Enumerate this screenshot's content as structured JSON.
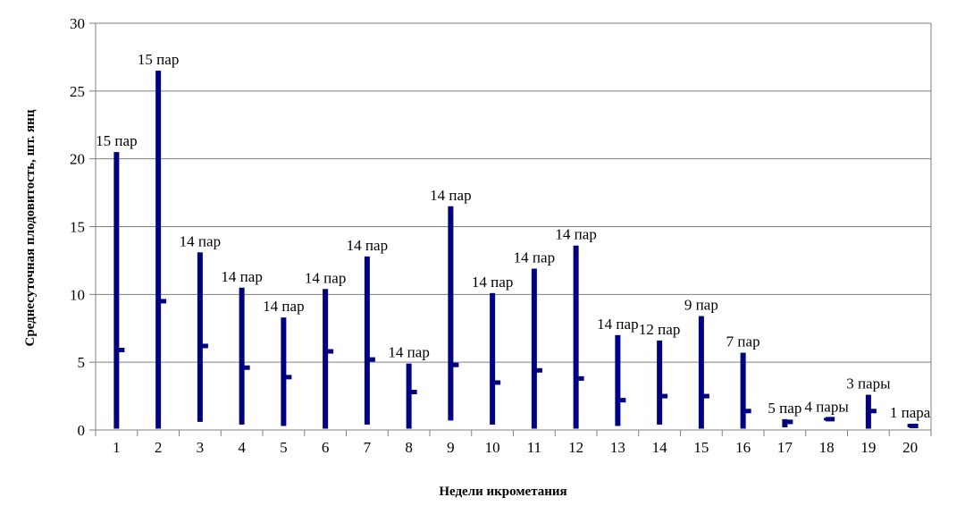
{
  "chart_data": {
    "type": "bar",
    "title": "",
    "xlabel": "Недели икрометания",
    "ylabel": "Среднесуточная плодовитость, шт. янц",
    "ylim": [
      0,
      30
    ],
    "yticks": [
      0,
      5,
      10,
      15,
      20,
      25,
      30
    ],
    "grid": true,
    "categories": [
      "1",
      "2",
      "3",
      "4",
      "5",
      "6",
      "7",
      "8",
      "9",
      "10",
      "11",
      "12",
      "13",
      "14",
      "15",
      "16",
      "17",
      "18",
      "19",
      "20"
    ],
    "series": [
      {
        "role": "high",
        "values": [
          20.5,
          26.5,
          13.1,
          10.5,
          8.3,
          10.4,
          12.8,
          4.9,
          16.5,
          10.1,
          11.9,
          13.6,
          7.0,
          6.6,
          8.4,
          5.7,
          0.8,
          0.9,
          2.6,
          0.45
        ]
      },
      {
        "role": "low",
        "values": [
          0.1,
          0.1,
          0.6,
          0.4,
          0.3,
          0.1,
          0.4,
          0.1,
          0.7,
          0.4,
          0.1,
          0.1,
          0.3,
          0.4,
          0.1,
          0.1,
          0.2,
          0.7,
          0.1,
          0.2
        ]
      },
      {
        "role": "mean",
        "values": [
          5.9,
          9.5,
          6.2,
          4.6,
          3.9,
          5.8,
          5.2,
          2.8,
          4.8,
          3.5,
          4.4,
          3.8,
          2.2,
          2.5,
          2.5,
          1.4,
          0.6,
          0.8,
          1.4,
          0.3
        ]
      }
    ],
    "annotations": [
      "15 пар",
      "15 пар",
      "14 пар",
      "14 пар",
      "14 пар",
      "14 пар",
      "14 пар",
      "14 пар",
      "14 пар",
      "14 пар",
      "14 пар",
      "14 пар",
      "14 пар",
      "12 пар",
      "9 пар",
      "7 пар",
      "5 пар",
      "4 пары",
      "3 пары",
      "1 пара"
    ],
    "colors": {
      "bars": "#000080",
      "grid": "#808080",
      "axis": "#808080"
    }
  }
}
